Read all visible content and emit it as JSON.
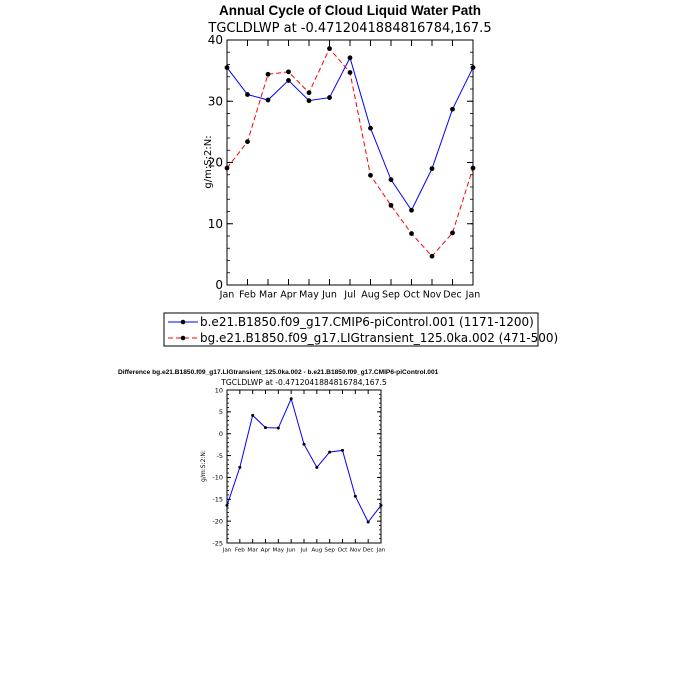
{
  "chart_data": [
    {
      "type": "line",
      "title": "Annual Cycle of Cloud Liquid Water Path",
      "subtitle": "TGCLDLWP at -0.4712041884816784,167.5",
      "ylabel": "g/m:S:2:N:",
      "ylim": [
        0,
        40
      ],
      "yticks": [
        "0",
        "10",
        "20",
        "30",
        "40"
      ],
      "categories": [
        "Jan",
        "Feb",
        "Mar",
        "Apr",
        "May",
        "Jun",
        "Jul",
        "Aug",
        "Sep",
        "Oct",
        "Nov",
        "Dec",
        "Jan"
      ],
      "series": [
        {
          "name": "b.e21.B1850.f09_g17.CMIP6-piControl.001 (1171-1200)",
          "color": "#0000ff",
          "dash": "solid",
          "values": [
            35.5,
            31.1,
            30.2,
            33.4,
            30.1,
            30.6,
            37.1,
            25.6,
            17.2,
            12.2,
            19.0,
            28.7,
            35.5
          ]
        },
        {
          "name": "bg.e21.B1850.f09_g17.LIGtransient_125.0ka.002 (471-500)",
          "color": "#ff0000",
          "dash": "dashed",
          "values": [
            19.1,
            23.4,
            34.4,
            34.8,
            31.4,
            38.6,
            34.7,
            17.9,
            13.0,
            8.4,
            4.7,
            8.5,
            19.1
          ]
        }
      ],
      "legend": "bottom"
    },
    {
      "type": "line",
      "title": "Difference bg.e21.B1850.f09_g17.LIGtransient_125.0ka.002 - b.e21.B1850.f09_g17.CMIP6-piControl.001",
      "subtitle": "TGCLDLWP at -0.4712041884816784,167.5",
      "ylabel": "g/m:S:2:N:",
      "ylim": [
        -25,
        10
      ],
      "yticks": [
        "-25",
        "-20",
        "-15",
        "-10",
        "-5",
        "0",
        "5",
        "10"
      ],
      "categories": [
        "Jan",
        "Feb",
        "Mar",
        "Apr",
        "May",
        "Jun",
        "Jul",
        "Aug",
        "Sep",
        "Oct",
        "Nov",
        "Dec",
        "Jan"
      ],
      "series": [
        {
          "color": "#0000ff",
          "dash": "solid",
          "values": [
            -16.4,
            -7.7,
            4.2,
            1.4,
            1.3,
            8.0,
            -2.4,
            -7.7,
            -4.2,
            -3.8,
            -14.3,
            -20.2,
            -16.4
          ]
        }
      ]
    }
  ]
}
